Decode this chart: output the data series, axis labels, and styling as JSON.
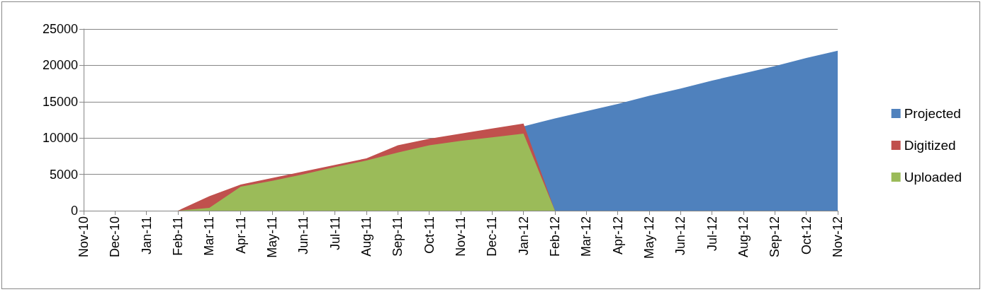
{
  "chart_data": {
    "type": "area",
    "categories": [
      "Nov-10",
      "Dec-10",
      "Jan-11",
      "Feb-11",
      "Mar-11",
      "Apr-11",
      "May-11",
      "Jun-11",
      "Jul-11",
      "Aug-11",
      "Sep-11",
      "Oct-11",
      "Nov-11",
      "Dec-11",
      "Jan-12",
      "Feb-12",
      "Mar-12",
      "Apr-12",
      "May-12",
      "Jun-12",
      "Jul-12",
      "Aug-12",
      "Sep-12",
      "Oct-12",
      "Nov-12"
    ],
    "series": [
      {
        "name": "Projected",
        "color": "#4f81bd",
        "values": [
          null,
          null,
          null,
          null,
          null,
          null,
          null,
          null,
          null,
          null,
          null,
          null,
          null,
          null,
          11600,
          12700,
          13700,
          14700,
          15800,
          16800,
          17900,
          18900,
          19900,
          21000,
          22000
        ]
      },
      {
        "name": "Digitized",
        "color": "#c0504d",
        "values": [
          0,
          0,
          0,
          0,
          2000,
          3600,
          4500,
          5400,
          6300,
          7200,
          9000,
          9900,
          10600,
          11300,
          12000,
          0,
          null,
          null,
          null,
          null,
          null,
          null,
          null,
          null,
          null
        ]
      },
      {
        "name": "Uploaded",
        "color": "#9bbb59",
        "values": [
          0,
          0,
          0,
          0,
          400,
          3300,
          4100,
          5000,
          6000,
          6900,
          8000,
          9000,
          9600,
          10100,
          10600,
          0,
          null,
          null,
          null,
          null,
          null,
          null,
          null,
          null,
          null
        ]
      }
    ],
    "ylim": [
      0,
      25000
    ],
    "yticks": [
      0,
      5000,
      10000,
      15000,
      20000,
      25000
    ],
    "grid": "y",
    "legend": "right"
  }
}
